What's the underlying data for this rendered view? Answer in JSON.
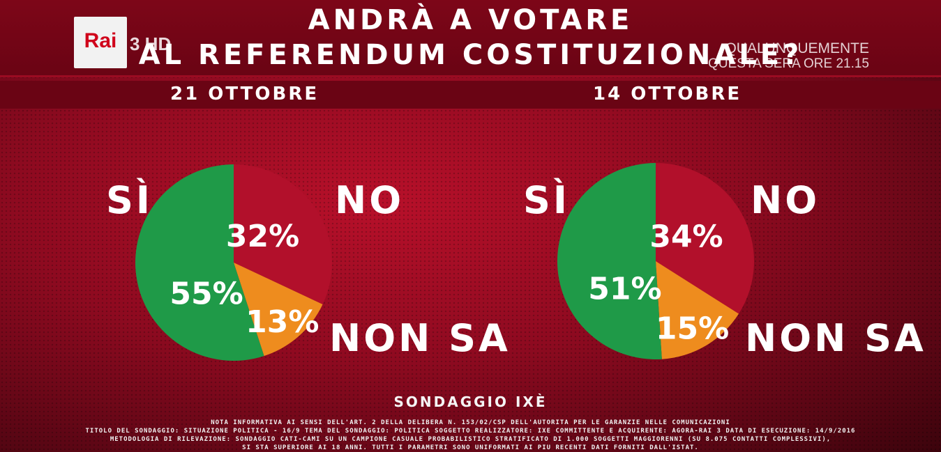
{
  "title": {
    "line1": "ANDRÀ A VOTARE",
    "line2": "AL REFERENDUM COSTITUZIONALE?"
  },
  "broadcaster": {
    "logo": "Rai",
    "channel": "3 HD",
    "promo_line1": "QUALUNQUEMENTE",
    "promo_line2": "QUESTA SERA ORE 21.15"
  },
  "labels": {
    "yes": "SÌ",
    "no": "NO",
    "dont_know": "NON SA"
  },
  "colors": {
    "yes": "#1f9a48",
    "no": "#b2102b",
    "dont_know": "#ee8c1e"
  },
  "source": "SONDAGGIO IXÈ",
  "notes": [
    "NOTA INFORMATIVA AI SENSI DELL'ART. 2 DELLA DELIBERA N. 153/02/CSP DELL'AUTORITÀ PER LE GARANZIE NELLE COMUNICAZIONI",
    "TITOLO DEL SONDAGGIO: SITUAZIONE POLITICA - 16/9 TEMA DEL SONDAGGIO: POLITICA SOGGETTO REALIZZATORE: IXÈ COMMITTENTE E ACQUIRENTE: AGORÀ-RAI 3 DATA DI ESECUZIONE: 14/9/2016",
    "METODOLOGIA DI RILEVAZIONE: SONDAGGIO CATI-CAMI SU UN CAMPIONE CASUALE PROBABILISTICO STRATIFICATO DI 1.000 SOGGETTI MAGGIORENNI (SU 8.075 CONTATTI COMPLESSIVI),",
    "SI STÀ SUPERIORE AI 18 ANNI. TUTTI I PARAMETRI SONO UNIFORMATI AI PIÙ RECENTI DATI FORNITI DALL'ISTAT."
  ],
  "chart_data": [
    {
      "type": "pie",
      "title": "21 OTTOBRE",
      "categories": [
        "SÌ",
        "NO",
        "NON SA"
      ],
      "values": [
        55,
        32,
        13
      ],
      "value_labels": [
        "55%",
        "32%",
        "13%"
      ]
    },
    {
      "type": "pie",
      "title": "14 OTTOBRE",
      "categories": [
        "SÌ",
        "NO",
        "NON SA"
      ],
      "values": [
        51,
        34,
        15
      ],
      "value_labels": [
        "51%",
        "34%",
        "15%"
      ]
    }
  ]
}
